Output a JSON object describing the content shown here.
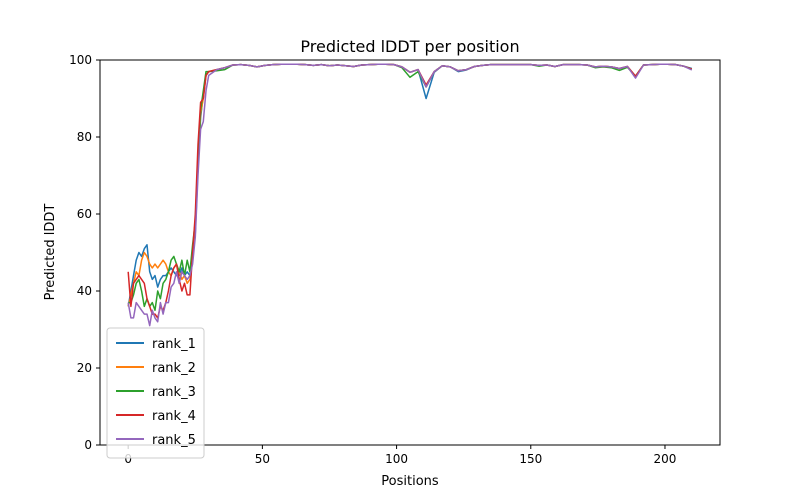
{
  "chart_data": {
    "type": "line",
    "title": "Predicted lDDT per position",
    "xlabel": "Positions",
    "ylabel": "Predicted lDDT",
    "xlim": [
      -10.5,
      220.5
    ],
    "ylim": [
      0,
      100
    ],
    "xticks": [
      0,
      50,
      100,
      150,
      200
    ],
    "yticks": [
      0,
      20,
      40,
      60,
      80,
      100
    ],
    "grid": false,
    "legend_position": "bottom-left",
    "x": [
      0,
      1,
      2,
      3,
      4,
      5,
      6,
      7,
      8,
      9,
      10,
      11,
      12,
      13,
      14,
      15,
      16,
      17,
      18,
      19,
      20,
      21,
      22,
      23,
      24,
      25,
      26,
      27,
      28,
      29,
      30,
      33,
      36,
      39,
      42,
      45,
      48,
      51,
      54,
      57,
      60,
      63,
      66,
      69,
      72,
      75,
      78,
      81,
      84,
      87,
      90,
      93,
      96,
      99,
      102,
      105,
      108,
      111,
      114,
      117,
      120,
      123,
      126,
      129,
      132,
      135,
      138,
      141,
      144,
      147,
      150,
      153,
      156,
      159,
      162,
      165,
      168,
      171,
      174,
      177,
      180,
      183,
      186,
      189,
      192,
      195,
      198,
      201,
      204,
      207,
      210
    ],
    "series": [
      {
        "name": "rank_1",
        "color": "#1f77b4",
        "values": [
          36,
          40,
          44,
          48,
          50,
          49,
          51,
          52,
          45,
          43,
          44,
          41,
          43,
          44,
          44,
          45,
          46,
          45,
          44,
          44,
          46,
          44,
          45,
          44,
          48,
          55,
          72,
          85,
          91,
          96,
          97,
          97.5,
          98,
          98.7,
          98.8,
          98.6,
          98.2,
          98.6,
          98.8,
          98.9,
          98.9,
          98.9,
          98.8,
          98.6,
          98.8,
          98.5,
          98.7,
          98.5,
          98.3,
          98.7,
          98.8,
          98.9,
          98.9,
          98.8,
          98.2,
          96.8,
          97.5,
          90,
          96.8,
          98.5,
          98.2,
          97,
          97.4,
          98.3,
          98.6,
          98.8,
          98.8,
          98.8,
          98.8,
          98.8,
          98.8,
          98.6,
          98.7,
          98.3,
          98.8,
          98.8,
          98.8,
          98.7,
          98.2,
          98.4,
          98.2,
          97.8,
          98.3,
          95.8,
          98.7,
          98.8,
          98.9,
          98.9,
          98.8,
          98.4,
          97.8
        ]
      },
      {
        "name": "rank_2",
        "color": "#ff7f0e",
        "values": [
          36,
          39,
          42,
          45,
          44,
          48,
          50,
          49,
          47,
          46,
          47,
          46,
          47,
          48,
          47,
          45,
          44,
          46,
          47,
          45,
          43,
          44,
          42,
          43,
          49,
          56,
          74,
          86,
          90,
          96,
          97,
          97.5,
          98,
          98.7,
          98.8,
          98.6,
          98.2,
          98.6,
          98.8,
          98.9,
          98.9,
          98.9,
          98.8,
          98.6,
          98.8,
          98.5,
          98.7,
          98.5,
          98.3,
          98.7,
          98.8,
          98.9,
          98.9,
          98.8,
          98.2,
          96.8,
          97.5,
          93,
          97,
          98.5,
          98.2,
          97.2,
          97.5,
          98.3,
          98.6,
          98.8,
          98.8,
          98.8,
          98.8,
          98.8,
          98.8,
          98.6,
          98.7,
          98.3,
          98.8,
          98.8,
          98.8,
          98.7,
          98.2,
          98.4,
          98.2,
          97.8,
          98.3,
          95.8,
          98.7,
          98.8,
          98.9,
          98.9,
          98.8,
          98.4,
          97.6
        ]
      },
      {
        "name": "rank_3",
        "color": "#2ca02c",
        "values": [
          37,
          37,
          39,
          42,
          43,
          40,
          36,
          38,
          36,
          37,
          35,
          40,
          38,
          42,
          43,
          45,
          48,
          49,
          47,
          45,
          48,
          44,
          48,
          45,
          52,
          58,
          75,
          87,
          92,
          97,
          97,
          97.2,
          97.5,
          98.7,
          98.8,
          98.6,
          98.2,
          98.6,
          98.8,
          98.9,
          98.9,
          98.9,
          98.8,
          98.6,
          98.8,
          98.5,
          98.7,
          98.5,
          98.3,
          98.7,
          98.8,
          98.9,
          98.9,
          98.8,
          98,
          95.5,
          97,
          93,
          97,
          98.5,
          98.2,
          97.2,
          97.5,
          98.3,
          98.6,
          98.8,
          98.8,
          98.8,
          98.8,
          98.8,
          98.8,
          98.4,
          98.7,
          98.3,
          98.8,
          98.8,
          98.8,
          98.7,
          98,
          98.2,
          98,
          97.3,
          98.1,
          95.8,
          98.7,
          98.8,
          98.9,
          98.9,
          98.8,
          98.4,
          97.6
        ]
      },
      {
        "name": "rank_4",
        "color": "#d62728",
        "values": [
          45,
          36,
          42,
          43,
          44,
          43,
          42,
          38,
          36,
          34,
          34,
          33,
          36,
          35,
          37,
          40,
          44,
          46,
          47,
          43,
          40,
          42,
          39,
          39,
          50,
          60,
          78,
          89,
          90,
          96,
          97,
          97.5,
          98,
          98.7,
          98.8,
          98.6,
          98.2,
          98.6,
          98.8,
          98.9,
          98.9,
          98.9,
          98.8,
          98.6,
          98.8,
          98.5,
          98.7,
          98.5,
          98.3,
          98.7,
          98.8,
          98.9,
          98.9,
          98.8,
          98.2,
          96.8,
          97.5,
          93.5,
          97,
          98.5,
          98.2,
          97.2,
          97.5,
          98.3,
          98.6,
          98.8,
          98.8,
          98.8,
          98.8,
          98.8,
          98.8,
          98.6,
          98.7,
          98.3,
          98.8,
          98.8,
          98.8,
          98.7,
          98.2,
          98.4,
          98.2,
          97.8,
          98.3,
          95.8,
          98.7,
          98.8,
          98.9,
          98.9,
          98.8,
          98.4,
          97.6
        ]
      },
      {
        "name": "rank_5",
        "color": "#9467bd",
        "values": [
          37,
          33,
          33,
          37,
          36,
          35,
          34,
          34,
          31,
          35,
          33,
          32,
          37,
          34,
          37,
          37,
          41,
          42,
          45,
          42,
          45,
          44,
          43,
          44,
          47,
          54,
          70,
          82,
          84,
          92,
          96,
          97.5,
          98,
          98.7,
          98.8,
          98.6,
          98.2,
          98.6,
          98.8,
          98.9,
          98.9,
          98.9,
          98.8,
          98.6,
          98.8,
          98.5,
          98.7,
          98.5,
          98.3,
          98.7,
          98.8,
          98.9,
          98.9,
          98.8,
          98.2,
          96.8,
          97.5,
          93,
          97,
          98.5,
          98.2,
          97.2,
          97.5,
          98.3,
          98.6,
          98.8,
          98.8,
          98.8,
          98.8,
          98.8,
          98.8,
          98.6,
          98.7,
          98.3,
          98.8,
          98.8,
          98.8,
          98.7,
          98.2,
          98.4,
          98.2,
          97.8,
          98.3,
          95.3,
          98.7,
          98.8,
          98.9,
          98.9,
          98.8,
          98.4,
          97.4
        ]
      }
    ]
  }
}
